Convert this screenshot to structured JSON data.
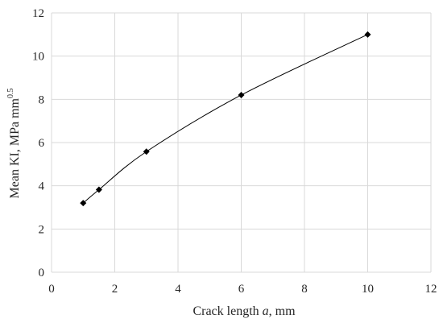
{
  "chart_data": {
    "type": "scatter",
    "x": [
      1,
      1.5,
      3,
      6,
      10
    ],
    "y": [
      3.2,
      3.82,
      5.58,
      8.2,
      11.0
    ],
    "series": [
      {
        "x": [
          1,
          1.5,
          3,
          6,
          10
        ],
        "y": [
          3.2,
          3.82,
          5.58,
          8.2,
          11.0
        ]
      }
    ],
    "marker": "diamond",
    "line": "smooth",
    "xlim": [
      0,
      12
    ],
    "ylim": [
      0,
      12
    ],
    "xticks": [
      0,
      2,
      4,
      6,
      8,
      10,
      12
    ],
    "yticks": [
      0,
      2,
      4,
      6,
      8,
      10,
      12
    ],
    "xlabel_prefix": "Crack length ",
    "xlabel_italic": "a",
    "xlabel_suffix": ", mm",
    "ylabel_main": "Mean KI, MPa mm",
    "ylabel_sup": "0.5",
    "grid": true,
    "colors": {
      "marker": "#000000",
      "line": "#000000",
      "grid": "#d9d9d9",
      "text": "#262626"
    }
  }
}
